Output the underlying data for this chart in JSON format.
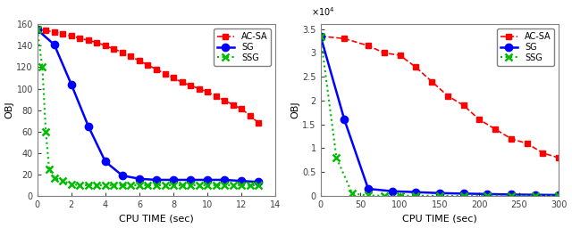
{
  "left": {
    "acsa_x": [
      0,
      0.5,
      1,
      1.5,
      2,
      2.5,
      3,
      3.5,
      4,
      4.5,
      5,
      5.5,
      6,
      6.5,
      7,
      7.5,
      8,
      8.5,
      9,
      9.5,
      10,
      10.5,
      11,
      11.5,
      12,
      12.5,
      13
    ],
    "acsa_y": [
      155,
      154,
      153,
      151,
      149,
      147,
      145,
      143,
      140,
      137,
      134,
      130,
      126,
      122,
      118,
      114,
      110,
      106,
      103,
      100,
      97,
      93,
      89,
      85,
      81,
      75,
      68
    ],
    "sg_x": [
      0,
      1,
      2,
      3,
      4,
      5,
      6,
      7,
      8,
      9,
      10,
      11,
      12,
      13
    ],
    "sg_y": [
      155,
      141,
      104,
      65,
      32,
      19,
      16,
      15,
      15,
      15,
      15,
      15,
      14,
      13
    ],
    "ssg_x": [
      0,
      0.3,
      0.5,
      0.7,
      1,
      1.5,
      2,
      2.5,
      3,
      3.5,
      4,
      4.5,
      5,
      5.5,
      6,
      6.5,
      7,
      7.5,
      8,
      8.5,
      9,
      9.5,
      10,
      10.5,
      11,
      11.5,
      12,
      12.5,
      13
    ],
    "ssg_y": [
      155,
      120,
      60,
      25,
      17,
      14,
      11,
      10,
      10,
      10,
      10,
      10,
      10,
      10,
      10,
      10,
      10,
      10,
      10,
      10,
      10,
      10,
      10,
      10,
      10,
      10,
      10,
      10,
      10
    ],
    "xlabel": "CPU TIME (sec)",
    "ylabel": "OBJ",
    "xlim": [
      0,
      14
    ],
    "ylim": [
      0,
      160
    ],
    "xticks": [
      0,
      2,
      4,
      6,
      8,
      10,
      12,
      14
    ],
    "yticks": [
      0,
      20,
      40,
      60,
      80,
      100,
      120,
      140,
      160
    ]
  },
  "right": {
    "acsa_x": [
      0,
      30,
      60,
      80,
      100,
      120,
      140,
      160,
      180,
      200,
      220,
      240,
      260,
      280,
      300
    ],
    "acsa_y": [
      33500,
      33000,
      31500,
      30000,
      29500,
      27000,
      24000,
      21000,
      19000,
      16000,
      14000,
      12000,
      11000,
      9000,
      8000
    ],
    "sg_x": [
      0,
      30,
      60,
      90,
      120,
      150,
      180,
      210,
      240,
      270,
      300
    ],
    "sg_y": [
      33500,
      16000,
      1500,
      1000,
      800,
      600,
      500,
      400,
      300,
      250,
      200
    ],
    "ssg_x": [
      0,
      20,
      40,
      60,
      80,
      100,
      120,
      150,
      180,
      210,
      240,
      270,
      300
    ],
    "ssg_y": [
      33500,
      8000,
      500,
      100,
      50,
      50,
      50,
      50,
      50,
      50,
      50,
      50,
      50
    ],
    "xlabel": "CPU TIME (sec)",
    "ylabel": "OBJ",
    "xlim": [
      0,
      300
    ],
    "ylim": [
      0,
      36000
    ],
    "xticks": [
      0,
      50,
      100,
      150,
      200,
      250,
      300
    ],
    "ytick_vals": [
      0,
      5000,
      10000,
      15000,
      20000,
      25000,
      30000,
      35000
    ],
    "ytick_labels": [
      "0",
      "0.5",
      "1",
      "1.5",
      "2",
      "2.5",
      "3",
      "3.5"
    ],
    "ytick_scale_label": "x 10^4"
  },
  "acsa_color": "#ff0000",
  "sg_color": "#0000ff",
  "ssg_color": "#00bb00",
  "legend_labels": [
    "AC-SA",
    "SG",
    "SSG"
  ],
  "bg_color": "#ffffff",
  "axes_bg": "#ffffff",
  "spine_color": "#808080",
  "tick_color": "#404040",
  "acsa_lw": 1.2,
  "sg_lw": 1.8,
  "ssg_lw": 1.5,
  "acsa_ms": 5,
  "sg_ms": 6,
  "ssg_ms": 6,
  "label_fontsize": 8,
  "tick_fontsize": 7,
  "legend_fontsize": 7
}
